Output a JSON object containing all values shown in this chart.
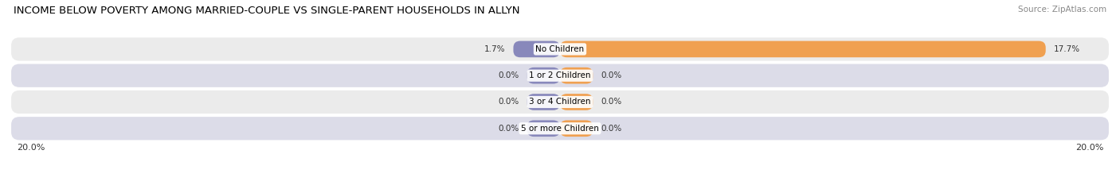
{
  "title": "INCOME BELOW POVERTY AMONG MARRIED-COUPLE VS SINGLE-PARENT HOUSEHOLDS IN ALLYN",
  "source": "Source: ZipAtlas.com",
  "categories": [
    "No Children",
    "1 or 2 Children",
    "3 or 4 Children",
    "5 or more Children"
  ],
  "married_values": [
    1.7,
    0.0,
    0.0,
    0.0
  ],
  "single_values": [
    17.7,
    0.0,
    0.0,
    0.0
  ],
  "married_color": "#8888bb",
  "single_color": "#f0a050",
  "row_color_dark": "#dcdce8",
  "row_color_light": "#ebebeb",
  "axis_limit": 20.0,
  "zero_stub": 1.2,
  "axis_label_left": "20.0%",
  "axis_label_right": "20.0%",
  "title_fontsize": 9.5,
  "source_fontsize": 7.5,
  "value_fontsize": 7.5,
  "cat_fontsize": 7.5,
  "legend_fontsize": 8
}
